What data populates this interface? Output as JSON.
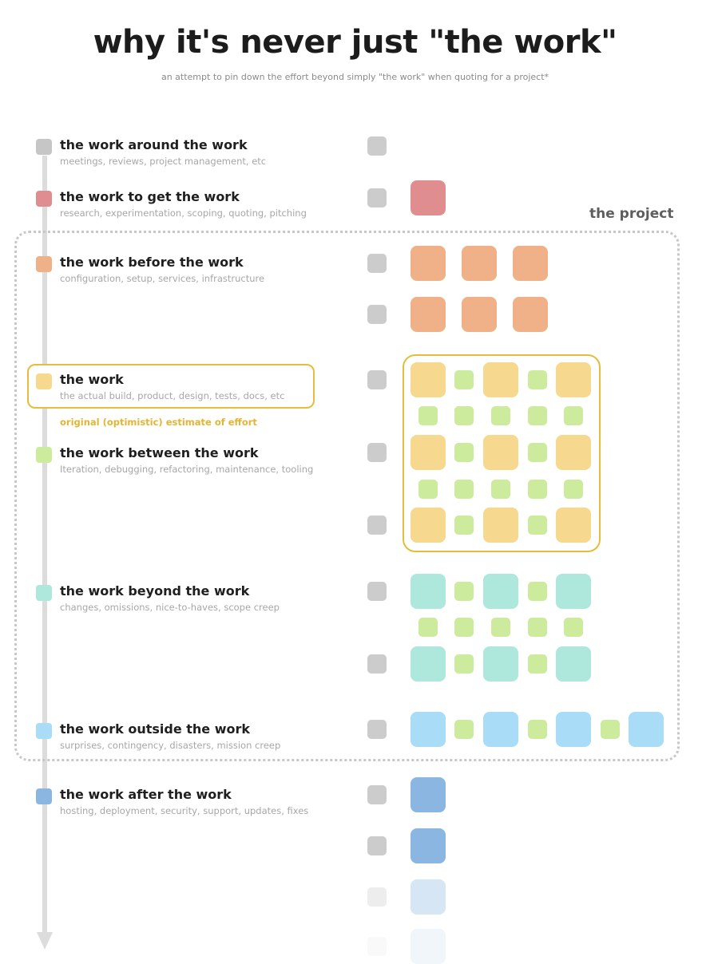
{
  "header": {
    "title": "why it's never just \"the work\"",
    "subtitle": "an attempt to pin down the effort beyond simply \"the work\" when quoting for a project*"
  },
  "project_label": "the project",
  "estimate_label": "original (optimistic) estimate of effort",
  "colors": {
    "timeline": "#dcdcdc",
    "pm": "#cccccc",
    "pitch": "#e08d8f",
    "setup": "#f0b188",
    "work": "#f6d98e",
    "between": "#cdeb9c",
    "beyond": "#aee8dc",
    "outside": "#a8dcf7",
    "after": "#8cb6e2",
    "accent": "#e5bd3c"
  },
  "categories": [
    {
      "key": "around",
      "title": "the work around the work",
      "subtitle": "meetings, reviews, project management, etc",
      "color": "#c6c6c6"
    },
    {
      "key": "get",
      "title": "the work to get the work",
      "subtitle": "research, experimentation, scoping, quoting, pitching",
      "color": "#e08d8f"
    },
    {
      "key": "before",
      "title": "the work before the work",
      "subtitle": "configuration, setup, services, infrastructure",
      "color": "#f0b188"
    },
    {
      "key": "work",
      "title": "the work",
      "subtitle": "the actual build, product, design, tests, docs, etc",
      "color": "#f6d98e"
    },
    {
      "key": "between",
      "title": "the work between the work",
      "subtitle": "Iteration, debugging, refactoring, maintenance, tooling",
      "color": "#cdeb9c"
    },
    {
      "key": "beyond",
      "title": "the work beyond the work",
      "subtitle": "changes, omissions, nice-to-haves, scope creep",
      "color": "#aee8dc"
    },
    {
      "key": "outside",
      "title": "the work outside the work",
      "subtitle": "surprises, contingency, disasters, mission creep",
      "color": "#a8dcf7"
    },
    {
      "key": "after",
      "title": "the work after the work",
      "subtitle": "hosting, deployment, security, support, updates, fixes",
      "color": "#8cb6e2"
    }
  ],
  "effort_grid": {
    "rows": [
      {
        "pm": true,
        "cells": []
      },
      {
        "pm": true,
        "cells": [
          "get"
        ]
      },
      {
        "pm": true,
        "cells": [
          "before",
          "before",
          "before"
        ]
      },
      {
        "pm": true,
        "cells": [
          "before",
          "before",
          "before"
        ]
      },
      {
        "pm": true,
        "cells": [
          "work",
          "between",
          "work",
          "between",
          "work"
        ]
      },
      {
        "pm": false,
        "cells": [
          "between",
          "between",
          "between",
          "between",
          "between"
        ]
      },
      {
        "pm": true,
        "cells": [
          "work",
          "between",
          "work",
          "between",
          "work"
        ]
      },
      {
        "pm": false,
        "cells": [
          "between",
          "between",
          "between",
          "between",
          "between"
        ]
      },
      {
        "pm": true,
        "cells": [
          "work",
          "between",
          "work",
          "between",
          "work"
        ]
      },
      {
        "pm": true,
        "cells": [
          "beyond",
          "between",
          "beyond",
          "between",
          "beyond"
        ]
      },
      {
        "pm": false,
        "cells": [
          "between",
          "between",
          "between",
          "between",
          "between"
        ]
      },
      {
        "pm": true,
        "cells": [
          "beyond",
          "between",
          "beyond",
          "between",
          "beyond"
        ]
      },
      {
        "pm": true,
        "cells": [
          "outside",
          "between",
          "outside",
          "between",
          "outside",
          "between",
          "outside"
        ]
      },
      {
        "pm": true,
        "cells": [
          "after"
        ]
      },
      {
        "pm": true,
        "cells": [
          "after"
        ]
      },
      {
        "pm": true,
        "cells": [
          "after"
        ],
        "fade": 0.35
      },
      {
        "pm": true,
        "cells": [
          "after"
        ],
        "fade": 0.12
      }
    ]
  }
}
